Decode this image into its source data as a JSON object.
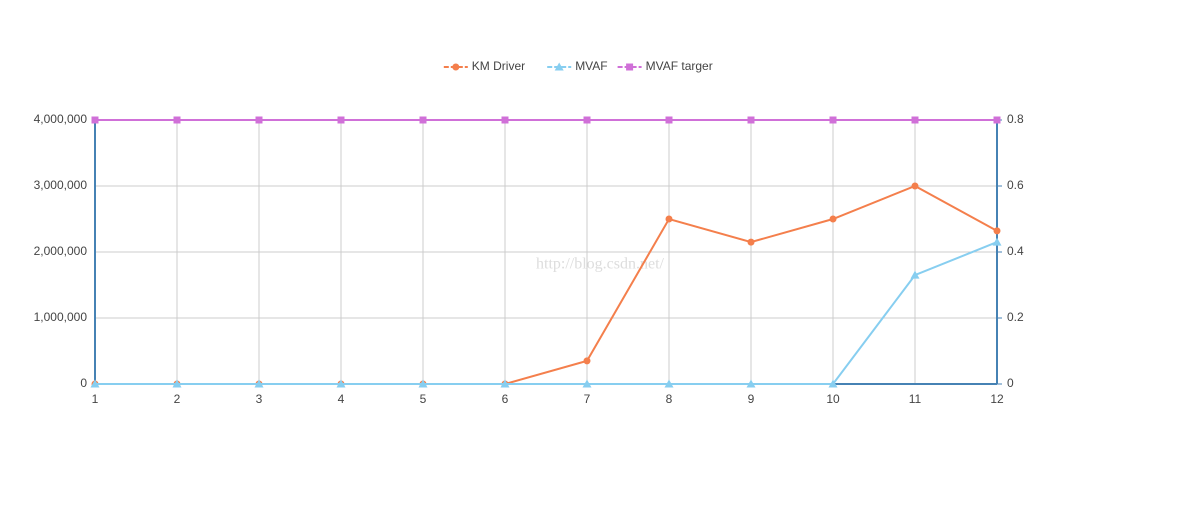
{
  "chart_data": {
    "type": "line",
    "x": [
      1,
      2,
      3,
      4,
      5,
      6,
      7,
      8,
      9,
      10,
      11,
      12
    ],
    "xlim": [
      1,
      12
    ],
    "xticks": [
      1,
      2,
      3,
      4,
      5,
      6,
      7,
      8,
      9,
      10,
      11,
      12
    ],
    "ylim": [
      0,
      4000000
    ],
    "yticks": [
      0,
      {
        "value": 1000000,
        "label": "1,000,000"
      },
      {
        "value": 2000000,
        "label": "2,000,000"
      },
      {
        "value": 3000000,
        "label": "3,000,000"
      },
      {
        "value": 4000000,
        "label": "4,000,000"
      }
    ],
    "y2lim": [
      0,
      0.8
    ],
    "y2ticks": [
      0,
      0.2,
      0.4,
      0.6,
      0.8
    ],
    "grid": true,
    "legend": "top",
    "watermark": "http://blog.csdn.net/",
    "series": [
      {
        "name": "KM Driver",
        "color": "#f47f4c",
        "marker": "circle",
        "values": [
          0,
          0,
          0,
          0,
          0,
          0,
          350000,
          2500000,
          2150000,
          2500000,
          3000000,
          2320000
        ]
      },
      {
        "name": "MVAF",
        "color": "#87cef0",
        "marker": "triangle",
        "axis": "y2",
        "values": [
          0,
          0,
          0,
          0,
          0,
          0,
          0,
          0,
          0,
          0,
          0.33,
          0.43
        ]
      },
      {
        "name": "MVAF targer",
        "color": "#d070d8",
        "marker": "square",
        "axis": "y2",
        "values": [
          0.8,
          0.8,
          0.8,
          0.8,
          0.8,
          0.8,
          0.8,
          0.8,
          0.8,
          0.8,
          0.8,
          0.8
        ]
      }
    ]
  }
}
